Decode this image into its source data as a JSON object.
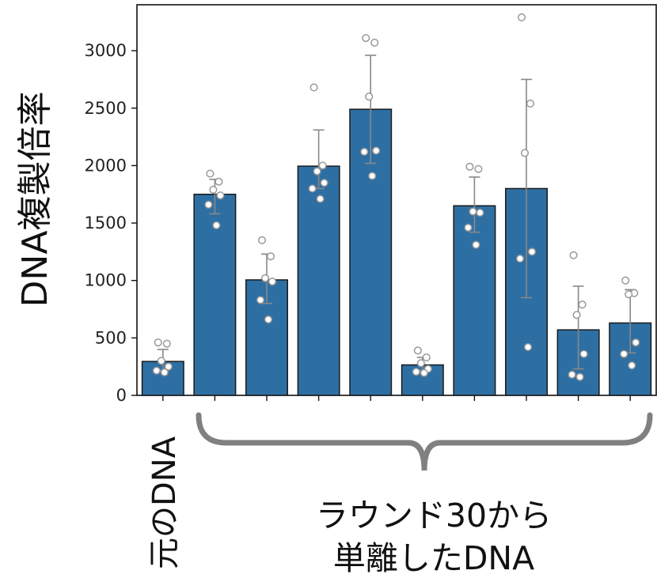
{
  "chart_data": {
    "type": "bar",
    "ylabel": "DNA複製倍率",
    "ylim": [
      0,
      3400
    ],
    "yticks": [
      0,
      500,
      1000,
      1500,
      2000,
      2500,
      3000
    ],
    "bar_color": "#2e6fa3",
    "edge_color": "#1a1a1a",
    "errorbar_color": "#888888",
    "point_fill": "#ffffff",
    "point_stroke": "#999999",
    "bars": [
      {
        "value": 295,
        "err_low": 215,
        "err_high": 400,
        "points": [
          460,
          450,
          300,
          250,
          215,
          200
        ]
      },
      {
        "value": 1750,
        "err_low": 1580,
        "err_high": 1880,
        "points": [
          1930,
          1860,
          1790,
          1740,
          1660,
          1480
        ]
      },
      {
        "value": 1005,
        "err_low": 800,
        "err_high": 1230,
        "points": [
          1350,
          1210,
          1020,
          990,
          830,
          660
        ]
      },
      {
        "value": 1995,
        "err_low": 1800,
        "err_high": 2310,
        "points": [
          2680,
          2000,
          1950,
          1850,
          1800,
          1710
        ]
      },
      {
        "value": 2490,
        "err_low": 2020,
        "err_high": 2960,
        "points": [
          3110,
          3070,
          2600,
          2130,
          2120,
          1910
        ]
      },
      {
        "value": 265,
        "err_low": 220,
        "err_high": 330,
        "points": [
          390,
          330,
          280,
          230,
          205,
          195
        ]
      },
      {
        "value": 1650,
        "err_low": 1420,
        "err_high": 1900,
        "points": [
          1990,
          1970,
          1600,
          1590,
          1460,
          1310
        ]
      },
      {
        "value": 1800,
        "err_low": 850,
        "err_high": 2750,
        "points": [
          3290,
          2540,
          2110,
          1250,
          1190,
          420
        ]
      },
      {
        "value": 570,
        "err_low": 230,
        "err_high": 950,
        "points": [
          1220,
          790,
          700,
          360,
          180,
          160
        ]
      },
      {
        "value": 630,
        "err_low": 370,
        "err_high": 920,
        "points": [
          1000,
          890,
          880,
          460,
          360,
          260
        ]
      }
    ]
  },
  "labels": {
    "original": "元のDNA",
    "group_line1": "ラウンド30から",
    "group_line2": "単離したDNA"
  },
  "bracket_color": "#808080"
}
